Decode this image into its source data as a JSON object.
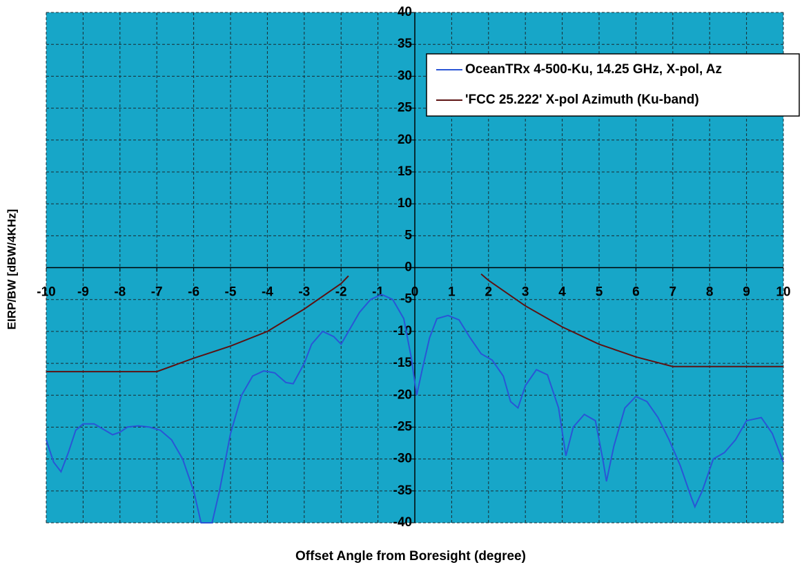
{
  "chart_data": {
    "type": "line",
    "xlabel": "Offset Angle from Boresight (degree)",
    "ylabel": "EIRP/BW [dBW/4KHz]",
    "xlim": [
      -10,
      10
    ],
    "ylim": [
      -40,
      40
    ],
    "xticks": [
      -10,
      -9,
      -8,
      -7,
      -6,
      -5,
      -4,
      -3,
      -2,
      -1,
      0,
      1,
      2,
      3,
      4,
      5,
      6,
      7,
      8,
      9,
      10
    ],
    "yticks": [
      -40,
      -35,
      -30,
      -25,
      -20,
      -15,
      -10,
      -5,
      0,
      5,
      10,
      15,
      20,
      25,
      30,
      35,
      40
    ],
    "grid": true,
    "background": "#17a6c8",
    "legend": "upper right",
    "series": [
      {
        "name": "OceanTRx 4-500-Ku, 14.25 GHz, X-pol, Az",
        "color": "#2a55d6",
        "x": [
          -10,
          -9.8,
          -9.6,
          -9.4,
          -9.2,
          -9,
          -8.7,
          -8.4,
          -8.2,
          -8,
          -7.8,
          -7.5,
          -7.2,
          -6.9,
          -6.6,
          -6.3,
          -6,
          -5.8,
          -5.5,
          -5.3,
          -5,
          -4.7,
          -4.4,
          -4.1,
          -3.8,
          -3.5,
          -3.3,
          -3,
          -2.8,
          -2.5,
          -2.2,
          -2,
          -1.8,
          -1.5,
          -1.2,
          -0.9,
          -0.6,
          -0.3,
          -0.1,
          0.05,
          0.2,
          0.4,
          0.6,
          0.9,
          1.2,
          1.5,
          1.8,
          2.1,
          2.4,
          2.6,
          2.8,
          3,
          3.3,
          3.6,
          3.9,
          4.1,
          4.3,
          4.6,
          4.9,
          5.1,
          5.2,
          5.4,
          5.7,
          6,
          6.3,
          6.6,
          6.9,
          7.2,
          7.5,
          7.6,
          7.8,
          8.1,
          8.4,
          8.7,
          9,
          9.4,
          9.7,
          10
        ],
        "values": [
          -27,
          -30.5,
          -32,
          -29,
          -25.5,
          -24.5,
          -24.5,
          -25.5,
          -26.2,
          -25.8,
          -25,
          -24.8,
          -25,
          -25.5,
          -27,
          -30,
          -35,
          -40,
          -40,
          -35,
          -26,
          -20,
          -17,
          -16.2,
          -16.5,
          -18,
          -18.2,
          -15,
          -12,
          -10,
          -10.8,
          -12,
          -10,
          -7,
          -5,
          -4.2,
          -5,
          -8,
          -14,
          -20,
          -16,
          -11,
          -8,
          -7.5,
          -8.2,
          -11,
          -13.5,
          -14.5,
          -17,
          -21,
          -22,
          -18.5,
          -16,
          -16.8,
          -22,
          -29.5,
          -25,
          -23,
          -24,
          -30,
          -33.5,
          -28,
          -22,
          -20.2,
          -21,
          -23.5,
          -27,
          -31,
          -36,
          -37.5,
          -35,
          -30,
          -29,
          -27,
          -24,
          -23.5,
          -26,
          -30.5
        ]
      },
      {
        "name": "'FCC 25.222' X-pol Azimuth (Ku-band)",
        "color": "#5c1212",
        "x": [
          -10,
          -7,
          -6,
          -5,
          -4,
          -3,
          -2,
          -1.8,
          null,
          1.8,
          2,
          3,
          4,
          5,
          6,
          7,
          10
        ],
        "values": [
          -16.3,
          -16.3,
          -14.2,
          -12.3,
          -10,
          -6.5,
          -2.5,
          -1.3,
          null,
          -1,
          -2,
          -6,
          -9.3,
          -12,
          -14,
          -15.5,
          -15.5
        ]
      }
    ]
  }
}
